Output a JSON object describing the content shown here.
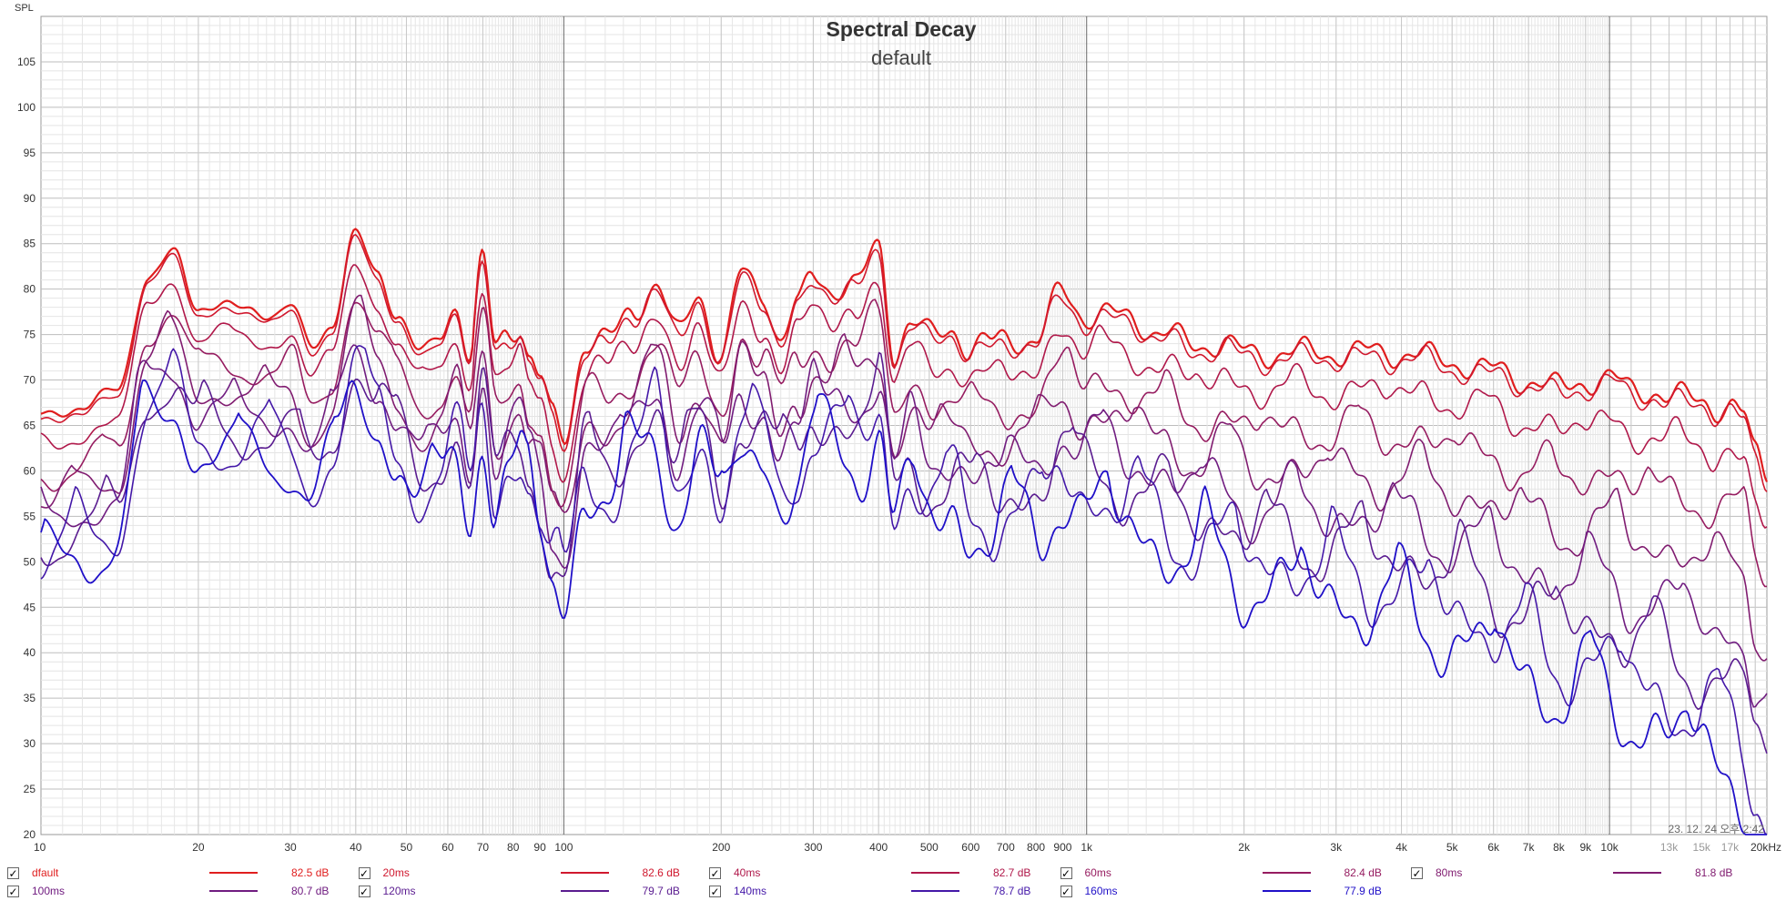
{
  "chart_data": {
    "type": "line",
    "title": "Spectral Decay",
    "subtitle": "default",
    "ylabel": "SPL",
    "xlabel": "",
    "x_scale": "log",
    "xlim": [
      10,
      20000
    ],
    "ylim": [
      20,
      110
    ],
    "grid": true,
    "y_ticks": [
      25,
      30,
      35,
      40,
      45,
      50,
      55,
      60,
      65,
      70,
      75,
      80,
      85,
      90,
      95,
      100,
      105
    ],
    "x_ticks": [
      {
        "v": 10,
        "label": "10",
        "muted": false
      },
      {
        "v": 20,
        "label": "20",
        "muted": false
      },
      {
        "v": 30,
        "label": "30",
        "muted": false
      },
      {
        "v": 40,
        "label": "40",
        "muted": false
      },
      {
        "v": 50,
        "label": "50",
        "muted": false
      },
      {
        "v": 60,
        "label": "60",
        "muted": false
      },
      {
        "v": 70,
        "label": "70",
        "muted": false
      },
      {
        "v": 80,
        "label": "80",
        "muted": false
      },
      {
        "v": 90,
        "label": "90",
        "muted": false
      },
      {
        "v": 100,
        "label": "100",
        "muted": false
      },
      {
        "v": 200,
        "label": "200",
        "muted": false
      },
      {
        "v": 300,
        "label": "300",
        "muted": false
      },
      {
        "v": 400,
        "label": "400",
        "muted": false
      },
      {
        "v": 500,
        "label": "500",
        "muted": false
      },
      {
        "v": 600,
        "label": "600",
        "muted": false
      },
      {
        "v": 700,
        "label": "700",
        "muted": false
      },
      {
        "v": 800,
        "label": "800",
        "muted": false
      },
      {
        "v": 900,
        "label": "900",
        "muted": false
      },
      {
        "v": 1000,
        "label": "1k",
        "muted": false
      },
      {
        "v": 2000,
        "label": "2k",
        "muted": false
      },
      {
        "v": 3000,
        "label": "3k",
        "muted": false
      },
      {
        "v": 4000,
        "label": "4k",
        "muted": false
      },
      {
        "v": 5000,
        "label": "5k",
        "muted": false
      },
      {
        "v": 6000,
        "label": "6k",
        "muted": false
      },
      {
        "v": 7000,
        "label": "7k",
        "muted": false
      },
      {
        "v": 8000,
        "label": "8k",
        "muted": false
      },
      {
        "v": 9000,
        "label": "9k",
        "muted": false
      },
      {
        "v": 10000,
        "label": "10k",
        "muted": false
      },
      {
        "v": 13000,
        "label": "13k",
        "muted": true
      },
      {
        "v": 15000,
        "label": "15k",
        "muted": true
      },
      {
        "v": 17000,
        "label": "17k",
        "muted": true
      },
      {
        "v": 20000,
        "label": "20kHz",
        "muted": false
      }
    ],
    "timestamp": "23. 12. 24 오후 2:42",
    "base_profile": {
      "f": [
        10,
        12,
        14,
        16,
        18,
        20,
        22,
        25,
        28,
        30,
        33,
        36,
        40,
        44,
        48,
        53,
        58,
        62,
        66,
        70,
        74,
        78,
        82,
        86,
        90,
        95,
        100,
        110,
        120,
        135,
        150,
        165,
        180,
        200,
        220,
        240,
        260,
        280,
        300,
        330,
        360,
        400,
        430,
        460,
        500,
        550,
        600,
        650,
        700,
        800,
        900,
        1000,
        1200,
        1400,
        1600,
        1800,
        2000,
        2500,
        3000,
        3500,
        4000,
        5000,
        6000,
        7000,
        8000,
        9000,
        10000,
        11000,
        12000,
        13000,
        14000,
        15000,
        16000,
        17000,
        18000,
        19000,
        20000
      ],
      "spl": [
        66,
        67,
        69,
        81,
        84,
        78,
        78,
        78,
        77,
        78,
        74,
        76,
        86,
        82,
        77,
        73,
        75,
        78,
        72,
        83,
        74,
        76,
        76,
        72,
        70,
        66,
        64,
        74,
        74,
        78,
        80,
        75,
        80,
        72,
        82,
        80,
        74,
        78,
        82,
        80,
        80,
        85,
        73,
        76,
        75,
        76,
        73,
        74,
        75,
        74,
        80,
        77,
        77,
        75,
        74,
        74,
        73,
        73,
        73,
        73,
        73,
        72,
        71,
        70,
        69,
        70,
        70,
        69,
        69,
        68,
        68,
        68,
        67,
        67,
        66,
        62,
        60
      ]
    },
    "series": [
      {
        "name": "dfault",
        "value": "82.5 dB",
        "color": "#e01e1e",
        "decay": 0.0,
        "hf_rolloff": 0.0,
        "ripple_scale": 1.0,
        "width": 2.2
      },
      {
        "name": "20ms",
        "value": "82.6 dB",
        "color": "#d0182e",
        "decay": 0.7,
        "hf_rolloff": 0.0,
        "ripple_scale": 1.0,
        "width": 1.6
      },
      {
        "name": "40ms",
        "value": "82.7 dB",
        "color": "#b0184a",
        "decay": 3.5,
        "hf_rolloff": 2.0,
        "ripple_scale": 1.1,
        "width": 1.6
      },
      {
        "name": "60ms",
        "value": "82.4 dB",
        "color": "#961c60",
        "decay": 7.0,
        "hf_rolloff": 5.0,
        "ripple_scale": 1.2,
        "width": 1.6
      },
      {
        "name": "80ms",
        "value": "81.8 dB",
        "color": "#801c70",
        "decay": 10.0,
        "hf_rolloff": 9.0,
        "ripple_scale": 1.3,
        "width": 1.6
      },
      {
        "name": "100ms",
        "value": "80.7 dB",
        "color": "#701c80",
        "decay": 12.5,
        "hf_rolloff": 14.0,
        "ripple_scale": 1.4,
        "width": 1.6
      },
      {
        "name": "120ms",
        "value": "79.7 dB",
        "color": "#5a1c90",
        "decay": 14.5,
        "hf_rolloff": 18.0,
        "ripple_scale": 1.5,
        "width": 1.6
      },
      {
        "name": "140ms",
        "value": "78.7 dB",
        "color": "#4418a8",
        "decay": 16.0,
        "hf_rolloff": 22.0,
        "ripple_scale": 1.6,
        "width": 1.6
      },
      {
        "name": "160ms",
        "value": "77.9 dB",
        "color": "#2010c8",
        "decay": 17.5,
        "hf_rolloff": 25.0,
        "ripple_scale": 1.7,
        "width": 1.8
      }
    ]
  }
}
